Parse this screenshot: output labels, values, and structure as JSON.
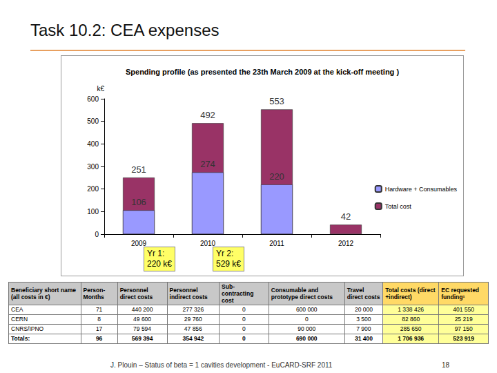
{
  "title": "Task 10.2: CEA expenses",
  "chart_data": {
    "type": "bar",
    "title": "Spending profile (as presented the 23th March 2009 at the kick-off meeting )",
    "y_label": "k€",
    "categories": [
      "2009",
      "2010",
      "2011",
      "2012"
    ],
    "series": [
      {
        "name": "Hardware + Consumables",
        "color": "#9999ff",
        "values": [
          106,
          274,
          220,
          null
        ]
      },
      {
        "name": "Total cost",
        "color": "#993366",
        "values": [
          251,
          492,
          553,
          42
        ]
      }
    ],
    "stacked": false,
    "ylim": [
      0,
      600
    ],
    "yticks": [
      0,
      100,
      200,
      300,
      400,
      500,
      600
    ],
    "grid": false,
    "legend": "right",
    "data_labels": true,
    "annotations": [
      "Yr 1:\n220 k€",
      "Yr 2:\n529 k€"
    ]
  },
  "table": {
    "header": [
      "Beneficiary short name (all costs in €)",
      "Person-Months",
      "Personnel direct costs",
      "Personnel indirect costs",
      "Sub-contracting cost",
      "Consumable and prototype direct costs",
      "Travel direct costs",
      "Total costs (direct +indirect)",
      "EC requested funding¹"
    ],
    "rows": [
      [
        "CEA",
        "71",
        "440 200",
        "277 326",
        "0",
        "600 000",
        "20 000",
        "1 338 426",
        "401 550"
      ],
      [
        "CERN",
        "8",
        "49 600",
        "29 760",
        "0",
        "0",
        "3 500",
        "82 860",
        "25 219"
      ],
      [
        "CNRS/IPNO",
        "17",
        "79 594",
        "47 856",
        "0",
        "90 000",
        "7 900",
        "285 650",
        "97 150"
      ],
      [
        "Totals:",
        "96",
        "569 394",
        "354 942",
        "0",
        "690 000",
        "31 400",
        "1 706 936",
        "523 919"
      ]
    ]
  },
  "footer": {
    "text": "J. Plouin – Status of beta = 1 cavities development - EuCARD-SRF 2011",
    "page": "18"
  }
}
